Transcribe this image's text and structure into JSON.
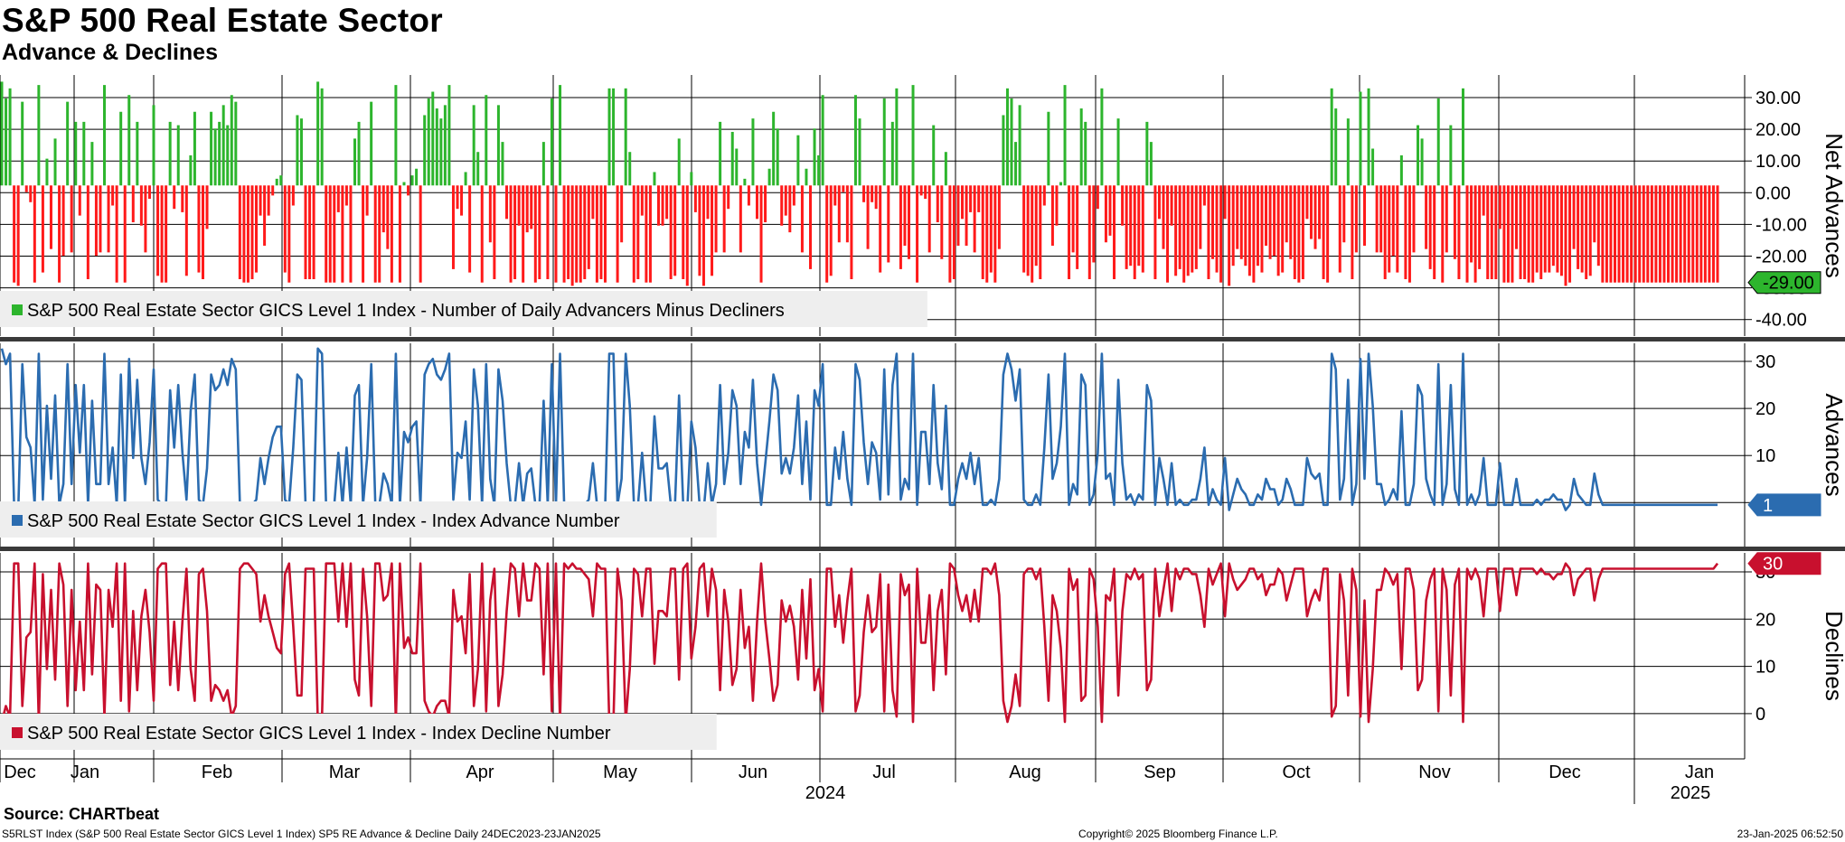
{
  "title": "S&P 500 Real Estate Sector",
  "subtitle": "Advance & Declines",
  "source": "Source: CHARTbeat",
  "footer": {
    "left": "S5RLST Index (S&P 500 Real Estate Sector GICS Level 1 Index) SP5 RE Advance & Decline  Daily 24DEC2023-23JAN2025",
    "mid": "Copyright© 2025 Bloomberg Finance L.P.",
    "right": "23-Jan-2025 06:52:50"
  },
  "colors": {
    "positive": "#2db52d",
    "negative": "#ff1a1a",
    "advances": "#2b6cb0",
    "declines": "#c8102e",
    "grid": "#000000"
  },
  "chart_data": [
    {
      "type": "bar",
      "title": "Net Advances",
      "ylabel": "Net Advances",
      "legend": "S&P 500 Real Estate Sector GICS Level 1 Index - Number of Daily Advancers Minus Decliners",
      "yticks": [
        "30.00",
        "20.00",
        "10.00",
        "0.00",
        "-10.00",
        "-20.00",
        "-30.00",
        "-40.00"
      ],
      "ylim": [
        -45,
        33
      ],
      "last_value_label": "-29.00",
      "values": [
        31,
        26,
        29,
        -29,
        -30,
        25,
        -2,
        -5,
        -29,
        30,
        -26,
        8,
        -19,
        14,
        -29,
        -21,
        25,
        -20,
        19,
        -9,
        19,
        -28,
        13,
        -21,
        -20,
        30,
        -20,
        -6,
        -29,
        22,
        -29,
        27,
        -11,
        19,
        -12,
        -20,
        -4,
        24,
        -27,
        -29,
        -29,
        19,
        -7,
        18,
        -8,
        -27,
        9,
        22,
        -26,
        -28,
        -13,
        22,
        17,
        19,
        24,
        18,
        27,
        25,
        -28,
        -29,
        -29,
        -28,
        -26,
        -9,
        -18,
        -9,
        -3,
        2,
        3,
        -26,
        -29,
        -6,
        21,
        20,
        -28,
        -28,
        -28,
        31,
        29,
        -29,
        -29,
        -29,
        -8,
        -29,
        -6,
        -29,
        14,
        19,
        -29,
        -9,
        25,
        -29,
        -29,
        -14,
        -19,
        -29,
        30,
        -29,
        1,
        -3,
        3,
        5,
        -29,
        21,
        26,
        28,
        23,
        20,
        24,
        30,
        -25,
        -7,
        -9,
        4,
        -26,
        24,
        10,
        -29,
        27,
        -17,
        -28,
        24,
        13,
        -10,
        -29,
        -28,
        -12,
        -29,
        -14,
        -13,
        -29,
        -28,
        13,
        -28,
        26,
        -29,
        30,
        -29,
        -28,
        -30,
        -29,
        -29,
        -28,
        -25,
        -10,
        -29,
        -28,
        -29,
        29,
        29,
        -29,
        -17,
        29,
        10,
        -29,
        -28,
        -9,
        -29,
        -29,
        4,
        -12,
        -12,
        -10,
        -28,
        -27,
        14,
        -28,
        -30,
        4,
        -8,
        -27,
        -30,
        -10,
        -27,
        -20,
        19,
        -20,
        -7,
        16,
        11,
        -20,
        2,
        -6,
        20,
        -10,
        -29,
        -11,
        5,
        22,
        17,
        -12,
        -9,
        -14,
        -6,
        15,
        -20,
        5,
        -25,
        17,
        9,
        27,
        -29,
        -27,
        -6,
        -17,
        -2,
        -17,
        -28,
        27,
        20,
        -5,
        -19,
        -5,
        -7,
        -26,
        26,
        -23,
        19,
        29,
        -25,
        -18,
        -22,
        30,
        -29,
        -3,
        -4,
        -20,
        18,
        -11,
        -22,
        10,
        -29,
        -28,
        -18,
        -10,
        -18,
        -8,
        -20,
        -8,
        -28,
        -29,
        -26,
        -29,
        -19,
        21,
        29,
        26,
        13,
        24,
        -26,
        -27,
        -29,
        -24,
        -28,
        -6,
        22,
        -18,
        -12,
        1,
        30,
        -28,
        -20,
        -25,
        23,
        19,
        -28,
        -23,
        -7,
        29,
        -17,
        -15,
        -28,
        20,
        -12,
        -25,
        -24,
        -28,
        -24,
        -26,
        19,
        13,
        -28,
        -10,
        -19,
        -29,
        -12,
        -27,
        -25,
        -29,
        -27,
        -26,
        -25,
        -19,
        -6,
        -28,
        -22,
        -26,
        -29,
        -10,
        -30,
        -24,
        -19,
        -22,
        -24,
        -27,
        -29,
        -24,
        -26,
        -18,
        -22,
        -21,
        -27,
        -26,
        -17,
        -22,
        -28,
        -29,
        -28,
        -10,
        -16,
        -19,
        -16,
        -28,
        -29,
        29,
        23,
        -26,
        -17,
        20,
        -28,
        -20,
        28,
        -18,
        29,
        11,
        -20,
        -20,
        -28,
        -26,
        -21,
        -26,
        9,
        -28,
        -29,
        -20,
        18,
        14,
        -19,
        -25,
        -28,
        26,
        -29,
        -20,
        18,
        -22,
        -28,
        29,
        -29,
        -23,
        -29,
        -25,
        -9,
        -28,
        -28,
        -28,
        -13,
        -29,
        -29,
        -29,
        -19,
        -28,
        -28,
        -29,
        -29,
        -26,
        -28,
        -26,
        -26,
        -24,
        -26,
        -27,
        -30,
        -29,
        -19,
        -25,
        -26,
        -28,
        -27,
        -17,
        -24,
        -29,
        -29,
        -29,
        -29,
        -29,
        -29,
        -29,
        -29,
        -29,
        -29,
        -29,
        -29,
        -29,
        -29,
        -29,
        -29,
        -29,
        -29,
        -29,
        -29,
        -29,
        -29,
        -29,
        -29,
        -29,
        -29,
        -29,
        -29,
        -29
      ]
    },
    {
      "type": "line",
      "title": "Advances",
      "ylabel": "Advances",
      "legend": "S&P 500 Real Estate Sector GICS Level 1 Index - Index Advance Number",
      "yticks": [
        "30",
        "20",
        "10",
        "0"
      ],
      "ylim": [
        -7,
        32
      ],
      "last_value_label": "1",
      "values": [
        31,
        28,
        30,
        1,
        0,
        28,
        14,
        12,
        1,
        30,
        2,
        20,
        6,
        22,
        1,
        5,
        28,
        5,
        24,
        11,
        24,
        1,
        21,
        5,
        5,
        30,
        5,
        12,
        1,
        26,
        1,
        29,
        10,
        25,
        10,
        5,
        13,
        27,
        2,
        1,
        1,
        23,
        12,
        24,
        11,
        2,
        19,
        26,
        2,
        1,
        8,
        26,
        23,
        24,
        27,
        24,
        29,
        27,
        1,
        1,
        1,
        1,
        2,
        10,
        5,
        10,
        14,
        16,
        16,
        2,
        1,
        12,
        26,
        25,
        1,
        1,
        1,
        31,
        30,
        1,
        1,
        1,
        11,
        1,
        12,
        1,
        22,
        24,
        1,
        10,
        28,
        1,
        1,
        7,
        5,
        1,
        30,
        1,
        15,
        13,
        16,
        17,
        1,
        26,
        28,
        29,
        26,
        25,
        27,
        30,
        2,
        11,
        10,
        17,
        2,
        27,
        20,
        1,
        28,
        6,
        1,
        27,
        21,
        9,
        1,
        1,
        9,
        1,
        7,
        8,
        1,
        1,
        21,
        1,
        28,
        1,
        30,
        1,
        1,
        0,
        1,
        1,
        1,
        2,
        9,
        1,
        1,
        1,
        30,
        30,
        1,
        6,
        30,
        20,
        1,
        1,
        11,
        1,
        1,
        18,
        8,
        8,
        9,
        1,
        1,
        22,
        1,
        0,
        17,
        12,
        1,
        0,
        9,
        1,
        5,
        24,
        5,
        11,
        23,
        20,
        5,
        15,
        12,
        25,
        9,
        1,
        9,
        17,
        26,
        23,
        7,
        10,
        7,
        12,
        22,
        5,
        17,
        2,
        23,
        20,
        28,
        1,
        1,
        12,
        6,
        15,
        6,
        1,
        28,
        25,
        13,
        5,
        13,
        11,
        2,
        27,
        3,
        24,
        30,
        2,
        6,
        4,
        30,
        1,
        15,
        15,
        5,
        24,
        9,
        4,
        20,
        1,
        1,
        6,
        9,
        6,
        11,
        5,
        10,
        1,
        1,
        2,
        1,
        6,
        26,
        30,
        27,
        21,
        27,
        2,
        1,
        1,
        3,
        1,
        12,
        26,
        6,
        9,
        16,
        30,
        1,
        5,
        3,
        26,
        24,
        1,
        3,
        11,
        30,
        6,
        7,
        1,
        25,
        9,
        2,
        3,
        1,
        3,
        2,
        24,
        21,
        1,
        10,
        6,
        1,
        9,
        1,
        2,
        1,
        1,
        2,
        2,
        6,
        12,
        1,
        4,
        2,
        1,
        10,
        0,
        3,
        6,
        4,
        3,
        1,
        1,
        3,
        2,
        6,
        4,
        4,
        1,
        2,
        6,
        4,
        1,
        1,
        1,
        10,
        7,
        6,
        7,
        1,
        1,
        30,
        27,
        2,
        6,
        25,
        1,
        5,
        29,
        6,
        30,
        20,
        5,
        5,
        1,
        2,
        4,
        2,
        19,
        1,
        1,
        5,
        24,
        22,
        6,
        3,
        1,
        28,
        1,
        5,
        24,
        4,
        1,
        30,
        1,
        3,
        1,
        3,
        10,
        1,
        1,
        1,
        9,
        1,
        1,
        1,
        6,
        1,
        1,
        1,
        1,
        2,
        1,
        2,
        2,
        3,
        2,
        2,
        0,
        1,
        6,
        3,
        2,
        1,
        1,
        7,
        3,
        1,
        1,
        1,
        1,
        1,
        1,
        1,
        1,
        1,
        1,
        1,
        1,
        1,
        1,
        1,
        1,
        1,
        1,
        1,
        1,
        1,
        1,
        1,
        1,
        1,
        1,
        1,
        1,
        1
      ]
    },
    {
      "type": "line",
      "title": "Declines",
      "ylabel": "Declines",
      "legend": "S&P 500 Real Estate Sector GICS Level 1 Index - Index Decline Number",
      "yticks": [
        "30",
        "20",
        "10",
        "0"
      ],
      "ylim": [
        -7,
        32
      ],
      "last_value_label": "30",
      "values": [
        0,
        3,
        1,
        30,
        30,
        3,
        16,
        17,
        30,
        0,
        28,
        10,
        25,
        8,
        30,
        26,
        3,
        25,
        6,
        19,
        6,
        30,
        9,
        26,
        25,
        1,
        25,
        18,
        30,
        4,
        30,
        2,
        21,
        6,
        20,
        25,
        17,
        4,
        29,
        30,
        30,
        7,
        19,
        6,
        19,
        29,
        10,
        4,
        28,
        29,
        21,
        4,
        7,
        6,
        4,
        6,
        1,
        3,
        29,
        30,
        30,
        29,
        28,
        19,
        24,
        20,
        17,
        14,
        13,
        28,
        30,
        18,
        5,
        5,
        29,
        29,
        29,
        0,
        1,
        30,
        30,
        30,
        19,
        30,
        18,
        30,
        8,
        5,
        29,
        20,
        3,
        30,
        30,
        23,
        24,
        30,
        0,
        30,
        14,
        16,
        13,
        13,
        30,
        4,
        2,
        1,
        3,
        4,
        4,
        1,
        25,
        19,
        20,
        13,
        28,
        3,
        10,
        30,
        2,
        23,
        29,
        3,
        9,
        21,
        30,
        29,
        20,
        30,
        23,
        23,
        30,
        29,
        9,
        30,
        2,
        30,
        0,
        30,
        29,
        30,
        29,
        29,
        28,
        27,
        20,
        30,
        29,
        29,
        0,
        0,
        29,
        23,
        0,
        10,
        29,
        28,
        20,
        29,
        29,
        11,
        21,
        21,
        20,
        29,
        29,
        8,
        29,
        30,
        12,
        18,
        29,
        30,
        20,
        29,
        25,
        6,
        25,
        19,
        7,
        10,
        25,
        14,
        18,
        4,
        19,
        30,
        19,
        12,
        4,
        7,
        23,
        19,
        22,
        18,
        8,
        25,
        12,
        27,
        6,
        10,
        2,
        29,
        29,
        18,
        24,
        15,
        23,
        29,
        2,
        5,
        17,
        24,
        17,
        18,
        28,
        2,
        26,
        6,
        1,
        28,
        24,
        26,
        0,
        29,
        15,
        15,
        24,
        6,
        21,
        25,
        9,
        30,
        29,
        24,
        21,
        24,
        19,
        25,
        19,
        29,
        29,
        28,
        30,
        24,
        4,
        0,
        3,
        9,
        3,
        28,
        29,
        29,
        27,
        29,
        18,
        4,
        24,
        21,
        14,
        0,
        29,
        25,
        27,
        4,
        5,
        29,
        27,
        18,
        0,
        24,
        23,
        29,
        5,
        21,
        28,
        27,
        29,
        27,
        28,
        6,
        8,
        29,
        20,
        25,
        30,
        21,
        29,
        27,
        29,
        29,
        28,
        28,
        24,
        18,
        29,
        26,
        28,
        30,
        20,
        30,
        27,
        25,
        26,
        27,
        29,
        29,
        27,
        28,
        24,
        26,
        26,
        29,
        28,
        23,
        26,
        29,
        29,
        29,
        20,
        23,
        25,
        23,
        29,
        29,
        1,
        3,
        28,
        23,
        5,
        29,
        25,
        1,
        23,
        0,
        10,
        25,
        25,
        29,
        28,
        26,
        28,
        10,
        29,
        29,
        25,
        6,
        8,
        23,
        27,
        29,
        2,
        29,
        25,
        5,
        26,
        29,
        0,
        29,
        27,
        29,
        27,
        20,
        29,
        29,
        29,
        21,
        29,
        29,
        29,
        24,
        29,
        29,
        29,
        29,
        28,
        29,
        28,
        28,
        27,
        28,
        28,
        30,
        29,
        24,
        27,
        28,
        29,
        29,
        23,
        27,
        29,
        29,
        29,
        29,
        29,
        29,
        29,
        29,
        29,
        29,
        29,
        29,
        29,
        29,
        29,
        29,
        29,
        29,
        29,
        29,
        29,
        29,
        29,
        29,
        29,
        29,
        29,
        29,
        30
      ]
    }
  ],
  "xaxis": {
    "months": [
      "Dec",
      "Jan",
      "Feb",
      "Mar",
      "Apr",
      "May",
      "Jun",
      "Jul",
      "Aug",
      "Sep",
      "Oct",
      "Nov",
      "Dec",
      "Jan"
    ],
    "years": [
      "2024",
      "2025"
    ]
  }
}
